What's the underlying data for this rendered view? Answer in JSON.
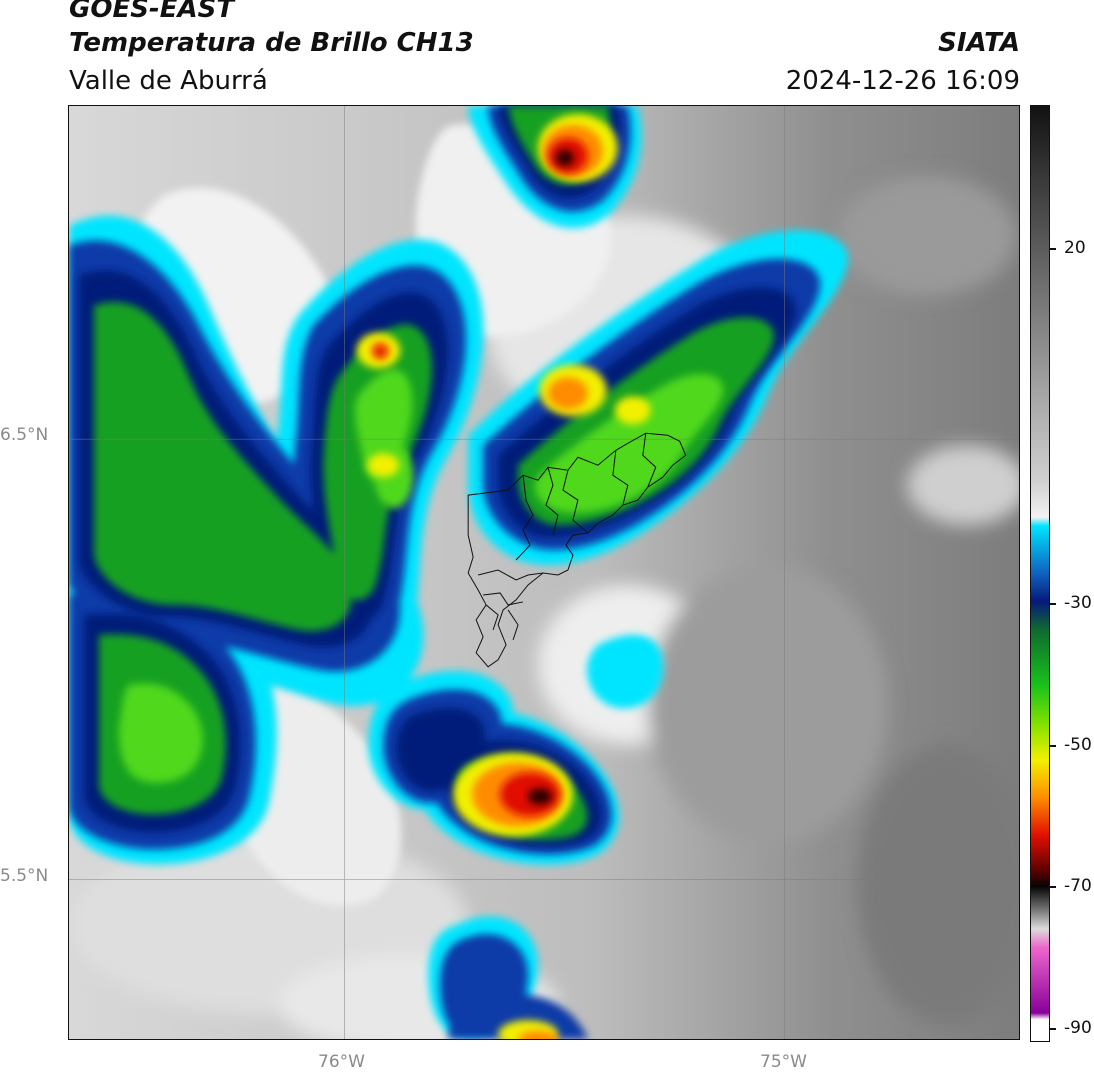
{
  "header": {
    "title_main": "GOES-EAST",
    "title_sub": "Temperatura de Brillo CH13",
    "region": "Valle de Aburrá",
    "organization": "SIATA",
    "timestamp": "2024-12-26 16:09"
  },
  "axes": {
    "lat_labels": [
      "6.5°N",
      "5.5°N"
    ],
    "lon_labels": [
      "76°W",
      "75°W"
    ]
  },
  "colorbar": {
    "tick_labels": [
      "20",
      "-30",
      "-50",
      "-70",
      "-90"
    ],
    "stops": [
      {
        "offset": 0.0,
        "color": "#111111"
      },
      {
        "offset": 0.08,
        "color": "#3a3a3a"
      },
      {
        "offset": 0.25,
        "color": "#8a8a8a"
      },
      {
        "offset": 0.4,
        "color": "#cfcfcf"
      },
      {
        "offset": 0.44,
        "color": "#f2f2f2"
      },
      {
        "offset": 0.449,
        "color": "#00e5ff"
      },
      {
        "offset": 0.5,
        "color": "#1060c0"
      },
      {
        "offset": 0.53,
        "color": "#061a7a"
      },
      {
        "offset": 0.56,
        "color": "#0f6a30"
      },
      {
        "offset": 0.62,
        "color": "#19c21a"
      },
      {
        "offset": 0.66,
        "color": "#80e000"
      },
      {
        "offset": 0.7,
        "color": "#f2f000"
      },
      {
        "offset": 0.74,
        "color": "#ff8c00"
      },
      {
        "offset": 0.78,
        "color": "#e01000"
      },
      {
        "offset": 0.82,
        "color": "#550000"
      },
      {
        "offset": 0.835,
        "color": "#050505"
      },
      {
        "offset": 0.86,
        "color": "#777777"
      },
      {
        "offset": 0.88,
        "color": "#dcdcdc"
      },
      {
        "offset": 0.9,
        "color": "#ee66cc"
      },
      {
        "offset": 0.97,
        "color": "#880099"
      },
      {
        "offset": 0.977,
        "color": "#ffffff"
      },
      {
        "offset": 1.0,
        "color": "#ffffff"
      }
    ]
  },
  "colors": {
    "cloud_white": "#f2f2f2",
    "cyan": "#00e5ff",
    "blue": "#0a3aa8",
    "navy": "#061a7a",
    "dark_green": "#0f6a30",
    "green": "#22c020",
    "yellow": "#f0f000",
    "orange": "#ff8c00",
    "red": "#e01000",
    "black": "#111111"
  }
}
